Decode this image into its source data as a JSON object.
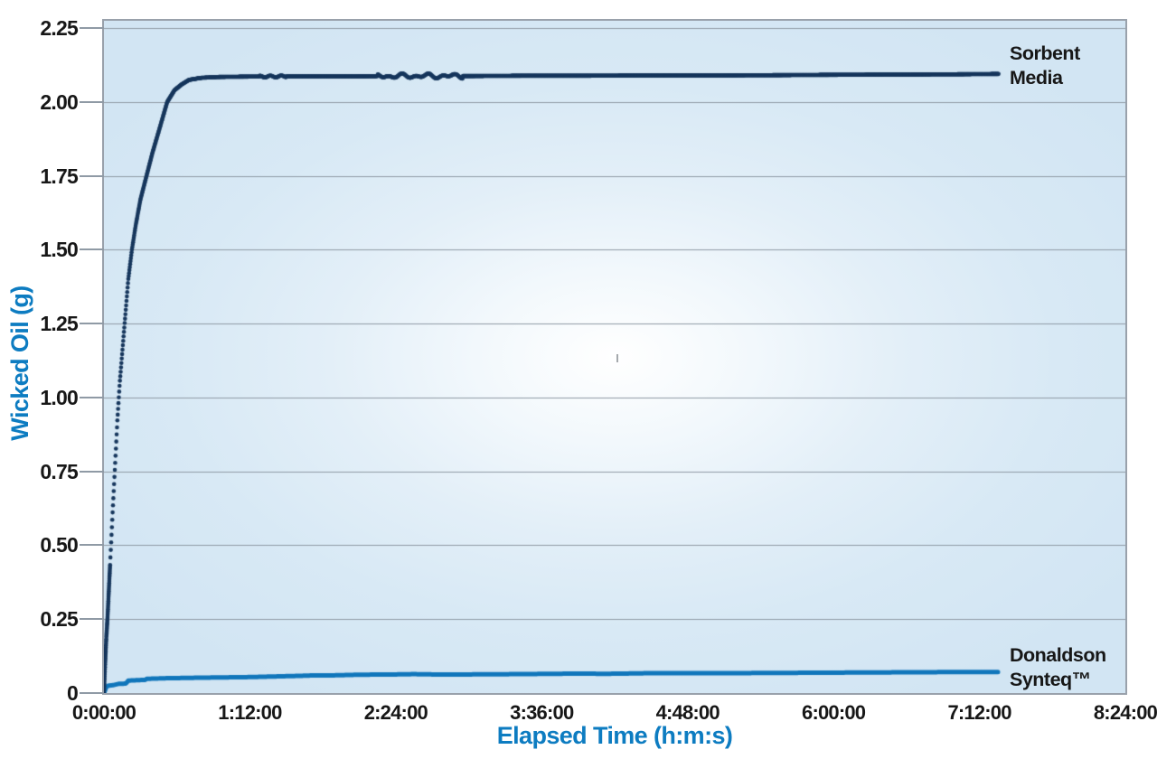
{
  "chart_data": {
    "type": "line",
    "title": "",
    "xlabel": "Elapsed Time (h:m:s)",
    "ylabel": "Wicked Oil (g)",
    "x_unit": "hours",
    "xlim": [
      0,
      8.4
    ],
    "ylim": [
      0,
      2.275
    ],
    "grid": "horizontal-only",
    "legend_position": "inline-right-of-line-ends",
    "x_ticks": [
      {
        "value": 0.0,
        "label": "0:00:00"
      },
      {
        "value": 1.2,
        "label": "1:12:00"
      },
      {
        "value": 2.4,
        "label": "2:24:00"
      },
      {
        "value": 3.6,
        "label": "3:36:00"
      },
      {
        "value": 4.8,
        "label": "4:48:00"
      },
      {
        "value": 6.0,
        "label": "6:00:00"
      },
      {
        "value": 7.2,
        "label": "7:12:00"
      },
      {
        "value": 8.4,
        "label": "8:24:00"
      }
    ],
    "y_ticks": [
      {
        "value": 0.0,
        "label": "0"
      },
      {
        "value": 0.25,
        "label": "0.25"
      },
      {
        "value": 0.5,
        "label": "0.50"
      },
      {
        "value": 0.75,
        "label": "0.75"
      },
      {
        "value": 1.0,
        "label": "1.00"
      },
      {
        "value": 1.25,
        "label": "1.25"
      },
      {
        "value": 1.5,
        "label": "1.50"
      },
      {
        "value": 1.75,
        "label": "1.75"
      },
      {
        "value": 2.0,
        "label": "2.00"
      },
      {
        "value": 2.25,
        "label": "2.25"
      }
    ],
    "series": [
      {
        "name": "Sorbent Media",
        "label_lines": [
          "Sorbent",
          "Media"
        ],
        "color": "#16365c",
        "style": "dots",
        "dot_radius": 2.3,
        "points": [
          [
            0,
            0
          ],
          [
            0.005,
            0.05
          ],
          [
            0.01,
            0.1
          ],
          [
            0.02,
            0.19
          ],
          [
            0.03,
            0.26
          ],
          [
            0.05,
            0.43
          ],
          [
            0.07,
            0.6
          ],
          [
            0.09,
            0.76
          ],
          [
            0.11,
            0.92
          ],
          [
            0.13,
            1.05
          ],
          [
            0.15,
            1.15
          ],
          [
            0.17,
            1.25
          ],
          [
            0.2,
            1.4
          ],
          [
            0.23,
            1.5
          ],
          [
            0.26,
            1.58
          ],
          [
            0.3,
            1.67
          ],
          [
            0.35,
            1.75
          ],
          [
            0.4,
            1.83
          ],
          [
            0.45,
            1.9
          ],
          [
            0.52,
            2.0
          ],
          [
            0.58,
            2.04
          ],
          [
            0.64,
            2.06
          ],
          [
            0.7,
            2.075
          ],
          [
            0.8,
            2.082
          ],
          [
            0.95,
            2.085
          ],
          [
            1.2,
            2.086
          ],
          [
            1.6,
            2.087
          ],
          [
            2.0,
            2.087
          ],
          [
            2.5,
            2.088
          ],
          [
            3.0,
            2.088
          ],
          [
            3.5,
            2.089
          ],
          [
            4.0,
            2.089
          ],
          [
            4.5,
            2.09
          ],
          [
            5.0,
            2.09
          ],
          [
            5.5,
            2.091
          ],
          [
            6.0,
            2.092
          ],
          [
            6.5,
            2.093
          ],
          [
            7.0,
            2.094
          ],
          [
            7.36,
            2.095
          ]
        ],
        "plateau_value": 2.09,
        "end_time_hours": 7.36
      },
      {
        "name": "Donaldson Synteq™",
        "label_lines": [
          "Donaldson",
          "Synteq™"
        ],
        "color": "#1076bb",
        "style": "line",
        "line_width": 5,
        "points": [
          [
            0,
            0
          ],
          [
            0.01,
            0.01
          ],
          [
            0.02,
            0.022
          ],
          [
            0.04,
            0.025
          ],
          [
            0.08,
            0.027
          ],
          [
            0.12,
            0.031
          ],
          [
            0.18,
            0.032
          ],
          [
            0.2,
            0.042
          ],
          [
            0.3,
            0.044
          ],
          [
            0.34,
            0.044
          ],
          [
            0.35,
            0.048
          ],
          [
            0.5,
            0.05
          ],
          [
            0.65,
            0.051
          ],
          [
            0.8,
            0.052
          ],
          [
            1.0,
            0.053
          ],
          [
            1.2,
            0.054
          ],
          [
            1.4,
            0.056
          ],
          [
            1.6,
            0.058
          ],
          [
            1.75,
            0.06
          ],
          [
            1.9,
            0.06
          ],
          [
            2.1,
            0.062
          ],
          [
            2.4,
            0.063
          ],
          [
            2.55,
            0.064
          ],
          [
            2.7,
            0.063
          ],
          [
            3.0,
            0.063
          ],
          [
            3.4,
            0.064
          ],
          [
            3.95,
            0.066
          ],
          [
            4.1,
            0.065
          ],
          [
            4.3,
            0.066
          ],
          [
            4.45,
            0.067
          ],
          [
            5.0,
            0.067
          ],
          [
            5.5,
            0.068
          ],
          [
            6.0,
            0.069
          ],
          [
            6.5,
            0.07
          ],
          [
            7.0,
            0.071
          ],
          [
            7.36,
            0.071
          ]
        ],
        "plateau_value": 0.07,
        "end_time_hours": 7.36
      }
    ],
    "colors": {
      "grid": "#8f9aa5",
      "plot_border": "#99a1ab",
      "tick_label": "#171717",
      "axis_title": "#0d7cc1",
      "plot_bg_edge": "#d2e5f3",
      "plot_bg_center": "#ffffff",
      "page_bg": "#ffffff"
    }
  }
}
